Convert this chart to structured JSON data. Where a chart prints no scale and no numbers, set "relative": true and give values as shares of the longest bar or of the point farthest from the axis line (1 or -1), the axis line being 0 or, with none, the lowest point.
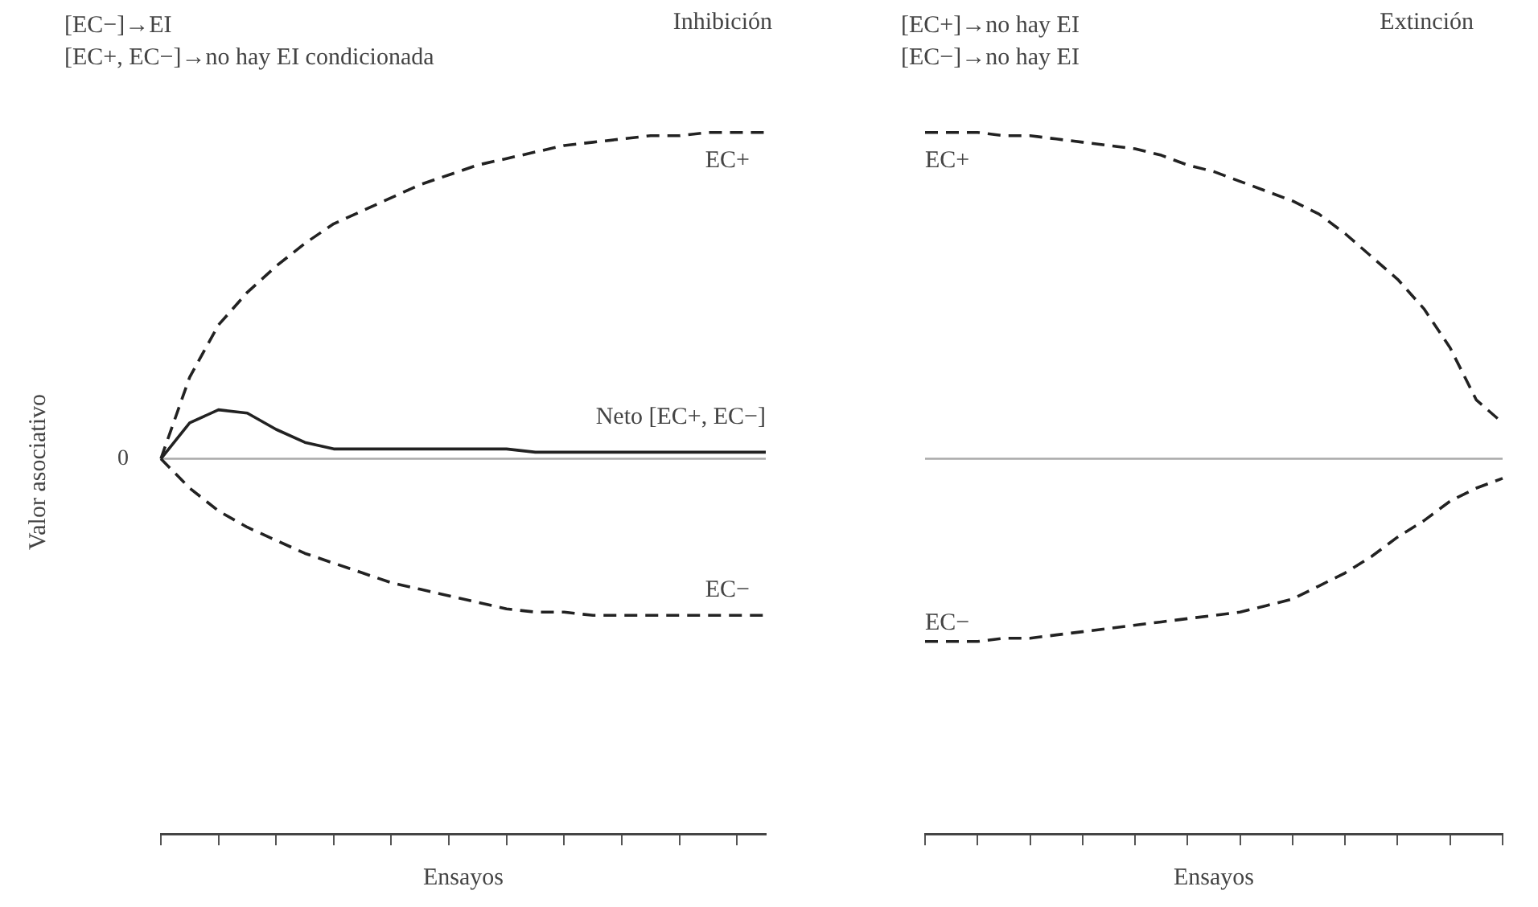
{
  "chart_data": [
    {
      "type": "line",
      "title": "Inhibición",
      "annotations": [
        "[EC−]→EI",
        "[EC+, EC−]→no hay EI condicionada"
      ],
      "xlabel": "Ensayos",
      "ylabel": "Valor asociativo",
      "relative": true,
      "grid": false,
      "legend": false,
      "marker": "none",
      "categories": [
        null,
        null,
        null,
        null,
        null,
        null,
        null,
        null,
        null,
        null,
        null,
        null,
        null,
        null,
        null,
        null,
        null,
        null,
        null,
        null,
        null,
        null
      ],
      "ref_lines": [
        {
          "axis": "y",
          "value": 0,
          "label": "0",
          "color": "#aaaaaa",
          "line_style": "solid"
        }
      ],
      "series": [
        {
          "name": "EC+",
          "color": "#222222",
          "line_style": "dashed",
          "values": [
            0,
            0.25,
            0.41,
            0.51,
            0.59,
            0.66,
            0.72,
            0.76,
            0.8,
            0.84,
            0.87,
            0.9,
            0.92,
            0.94,
            0.96,
            0.97,
            0.98,
            0.99,
            0.99,
            1,
            1,
            1
          ]
        },
        {
          "name": "Neto [EC+, EC−]",
          "color": "#222222",
          "line_style": "solid",
          "values": [
            0,
            0.11,
            0.15,
            0.14,
            0.09,
            0.05,
            0.03,
            0.03,
            0.03,
            0.03,
            0.03,
            0.03,
            0.03,
            0.02,
            0.02,
            0.02,
            0.02,
            0.02,
            0.02,
            0.02,
            0.02,
            0.02
          ]
        },
        {
          "name": "EC−",
          "color": "#222222",
          "line_style": "dashed",
          "values": [
            0,
            -0.09,
            -0.16,
            -0.21,
            -0.25,
            -0.29,
            -0.32,
            -0.35,
            -0.38,
            -0.4,
            -0.42,
            -0.44,
            -0.46,
            -0.47,
            -0.47,
            -0.48,
            -0.48,
            -0.48,
            -0.48,
            -0.48,
            -0.48,
            -0.48
          ]
        }
      ]
    },
    {
      "type": "line",
      "title": "Extinción",
      "annotations": [
        "[EC+]→no hay EI",
        "[EC−]→no hay EI"
      ],
      "xlabel": "Ensayos",
      "relative": true,
      "grid": false,
      "legend": false,
      "marker": "none",
      "categories": [
        null,
        null,
        null,
        null,
        null,
        null,
        null,
        null,
        null,
        null,
        null,
        null,
        null,
        null,
        null,
        null,
        null,
        null,
        null,
        null,
        null,
        null,
        null
      ],
      "ref_lines": [
        {
          "axis": "y",
          "value": 0,
          "color": "#aaaaaa",
          "line_style": "solid"
        }
      ],
      "series": [
        {
          "name": "EC+",
          "color": "#222222",
          "line_style": "dashed",
          "values": [
            1,
            1,
            1,
            0.99,
            0.99,
            0.98,
            0.97,
            0.96,
            0.95,
            0.93,
            0.9,
            0.88,
            0.85,
            0.82,
            0.79,
            0.75,
            0.69,
            0.62,
            0.55,
            0.46,
            0.34,
            0.18,
            0.11
          ]
        },
        {
          "name": "EC−",
          "color": "#222222",
          "line_style": "dashed",
          "values": [
            -0.56,
            -0.56,
            -0.56,
            -0.55,
            -0.55,
            -0.54,
            -0.53,
            -0.52,
            -0.51,
            -0.5,
            -0.49,
            -0.48,
            -0.47,
            -0.45,
            -0.43,
            -0.39,
            -0.35,
            -0.3,
            -0.24,
            -0.19,
            -0.13,
            -0.09,
            -0.06
          ]
        }
      ]
    }
  ]
}
